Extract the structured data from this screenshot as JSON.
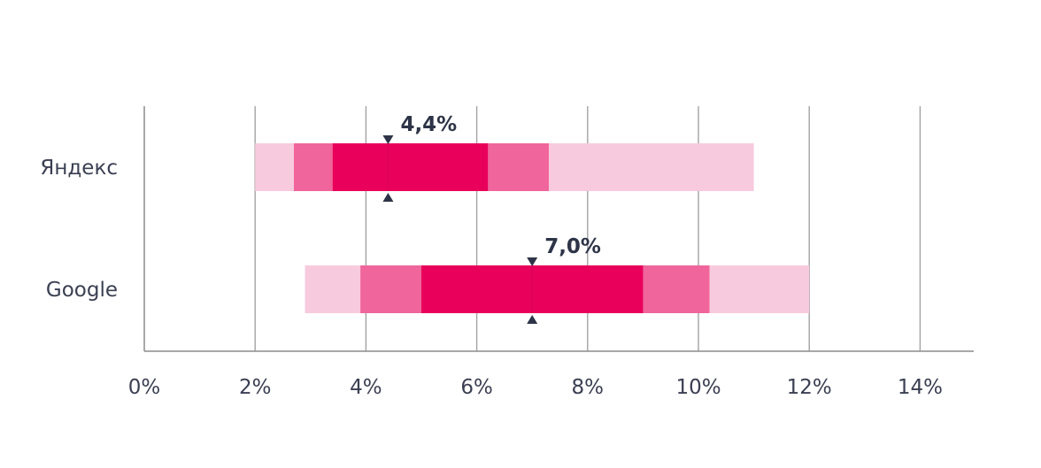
{
  "chart_data": {
    "type": "bar",
    "orientation": "horizontal",
    "categories": [
      "Яндекс",
      "Google"
    ],
    "x_ticks": [
      "0%",
      "2%",
      "4%",
      "6%",
      "8%",
      "10%",
      "12%",
      "14%"
    ],
    "xlim": [
      0,
      15
    ],
    "grid": true,
    "series": [
      {
        "band": "outer",
        "color": "#f8cadd",
        "ranges": [
          [
            2.0,
            11.0
          ],
          [
            2.9,
            12.0
          ]
        ]
      },
      {
        "band": "middle",
        "color": "#f0659b",
        "ranges": [
          [
            2.7,
            7.3
          ],
          [
            3.9,
            10.2
          ]
        ]
      },
      {
        "band": "inner",
        "color": "#e8005a",
        "ranges": [
          [
            3.4,
            6.2
          ],
          [
            5.0,
            9.0
          ]
        ]
      }
    ],
    "medians": [
      {
        "value": 4.4,
        "label": "4,4%"
      },
      {
        "value": 7.0,
        "label": "7,0%"
      }
    ],
    "colors": {
      "axis": "#8c8c8c",
      "grid": "#a3a3a3",
      "text": "#3a3f52",
      "marker": "#2e3447"
    }
  }
}
